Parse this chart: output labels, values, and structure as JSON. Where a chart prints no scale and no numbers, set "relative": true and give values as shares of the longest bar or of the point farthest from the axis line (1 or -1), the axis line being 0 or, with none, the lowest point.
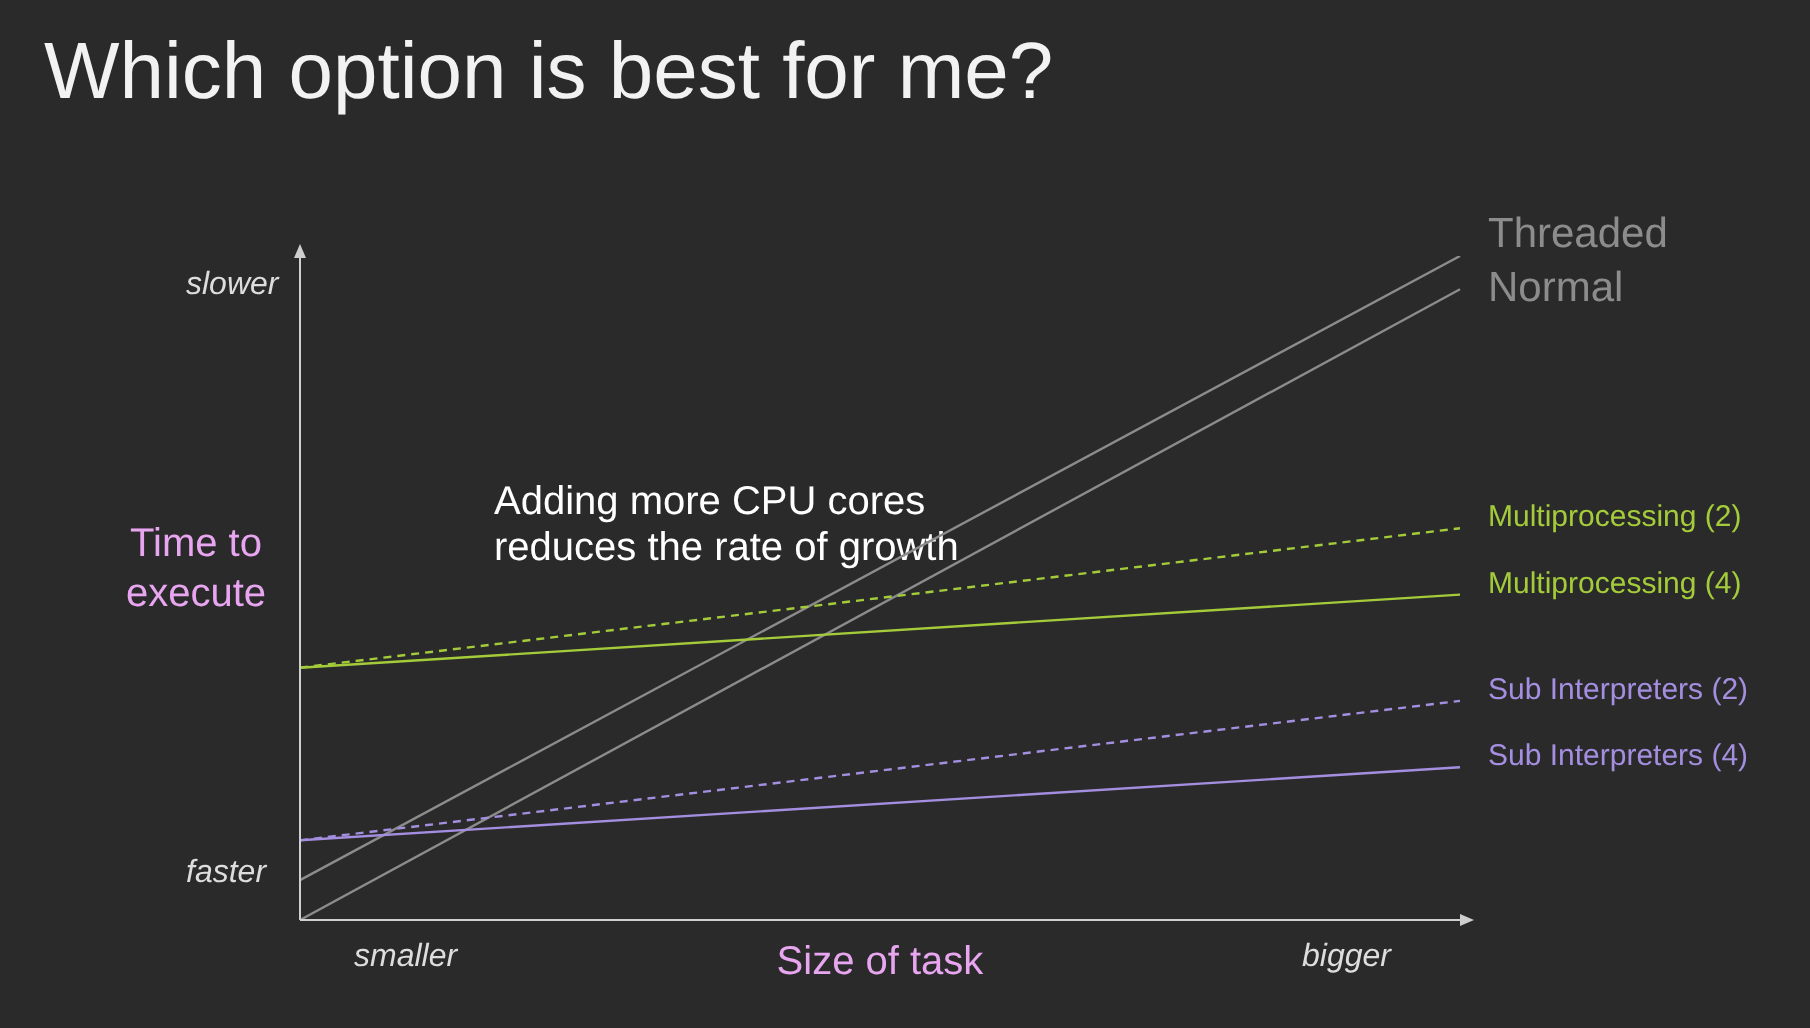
{
  "chart_data": {
    "type": "line",
    "title": "Which option is best for me?",
    "xlabel": "Size of task",
    "ylabel": "Time to execute",
    "relative": true,
    "annotations": [
      "slower",
      "faster",
      "smaller",
      "bigger",
      "Adding more CPU cores reduces the rate of growth"
    ],
    "categories": [
      null,
      null
    ],
    "series": [
      {
        "name": "Threaded",
        "color": "#8c8c8c",
        "values": [
          0.06,
          1
        ]
      },
      {
        "name": "Normal",
        "color": "#8c8c8c",
        "values": [
          0,
          0.95
        ]
      },
      {
        "name": "Multiprocessing (2)",
        "color": "#a4cc3a",
        "values": [
          0.38,
          0.59
        ],
        "line_style": "dashed"
      },
      {
        "name": "Multiprocessing (4)",
        "color": "#a4cc3a",
        "values": [
          0.38,
          0.49
        ]
      },
      {
        "name": "Sub Interpreters (2)",
        "color": "#a48ee0",
        "values": [
          0.12,
          0.33
        ],
        "line_style": "dashed"
      },
      {
        "name": "Sub Interpreters (4)",
        "color": "#a48ee0",
        "values": [
          0.12,
          0.23
        ]
      }
    ]
  }
}
